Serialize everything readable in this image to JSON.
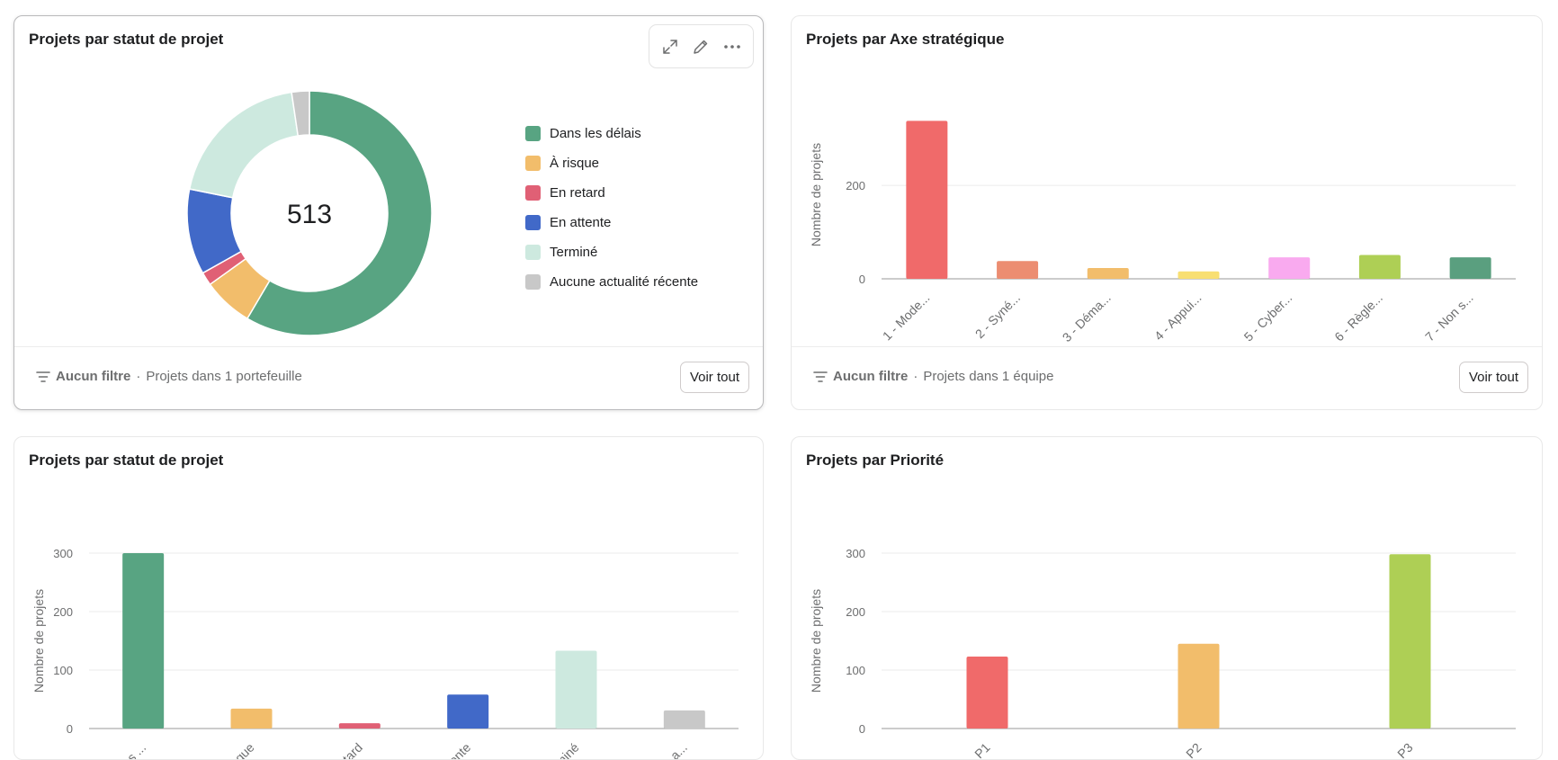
{
  "cards": [
    {
      "title": "Projets par statut de projet",
      "filter": "Aucun filtre",
      "scope": "Projets dans 1 portefeuille",
      "voir_tout": "Voir tout"
    },
    {
      "title": "Projets par Axe stratégique",
      "filter": "Aucun filtre",
      "scope": "Projets dans 1 équipe",
      "voir_tout": "Voir tout"
    },
    {
      "title": "Projets par statut de projet"
    },
    {
      "title": "Projets par Priorité"
    }
  ],
  "toolbar": {
    "icons": [
      "expand-icon",
      "pencil-icon",
      "more-icon"
    ]
  },
  "filter_icon": "filter-lines-icon",
  "separator": "·",
  "colors": {
    "green": "#58a482",
    "yellow": "#f2bd6b",
    "red": "#e06075",
    "blue": "#4169c8",
    "mint": "#cde9df",
    "gray": "#c8c8c8",
    "coral": "#f06a6a",
    "salmon": "#ec8d71",
    "lemon": "#f8df72",
    "pink": "#f9aaef",
    "lime": "#aecf55",
    "teal": "#5a9f7f"
  },
  "chart_data": [
    {
      "type": "pie",
      "center_label": "513",
      "categories": [
        "Dans les délais",
        "À risque",
        "En retard",
        "En attente",
        "Terminé",
        "Aucune actualité récente"
      ],
      "values": [
        300,
        34,
        9,
        58,
        100,
        12
      ],
      "colors": [
        "#58a482",
        "#f2bd6b",
        "#e06075",
        "#4169c8",
        "#cde9df",
        "#c8c8c8"
      ],
      "legend": "right"
    },
    {
      "type": "bar",
      "categories": [
        "1 - Mode...",
        "2 - Syné...",
        "3 - Déma...",
        "4 - Appui...",
        "5 - Cyber...",
        "6 - Règle...",
        "7 - Non s..."
      ],
      "values": [
        338,
        38,
        23,
        16,
        46,
        51,
        46
      ],
      "colors": [
        "#f06a6a",
        "#ec8d71",
        "#f2bd6b",
        "#f8df72",
        "#f9aaef",
        "#aecf55",
        "#5a9f7f"
      ],
      "ylabel": "Nombre de projets",
      "yticks": [
        0,
        200
      ],
      "ylim": [
        0,
        360
      ],
      "grid": true
    },
    {
      "type": "bar",
      "categories": [
        "Dans les ...",
        "À risque",
        "En retard",
        "En attente",
        "Terminé",
        "Aucune a..."
      ],
      "values": [
        300,
        34,
        9,
        58,
        133,
        31
      ],
      "colors": [
        "#58a482",
        "#f2bd6b",
        "#e06075",
        "#4169c8",
        "#cde9df",
        "#c8c8c8"
      ],
      "ylabel": "Nombre de projets",
      "yticks": [
        0,
        100,
        200,
        300
      ],
      "ylim": [
        0,
        300
      ],
      "grid": true
    },
    {
      "type": "bar",
      "categories": [
        "P1",
        "P2",
        "P3"
      ],
      "values": [
        123,
        145,
        298
      ],
      "colors": [
        "#f06a6a",
        "#f2bd6b",
        "#aecf55"
      ],
      "ylabel": "Nombre de projets",
      "yticks": [
        0,
        100,
        200,
        300
      ],
      "ylim": [
        0,
        300
      ],
      "grid": true
    }
  ]
}
